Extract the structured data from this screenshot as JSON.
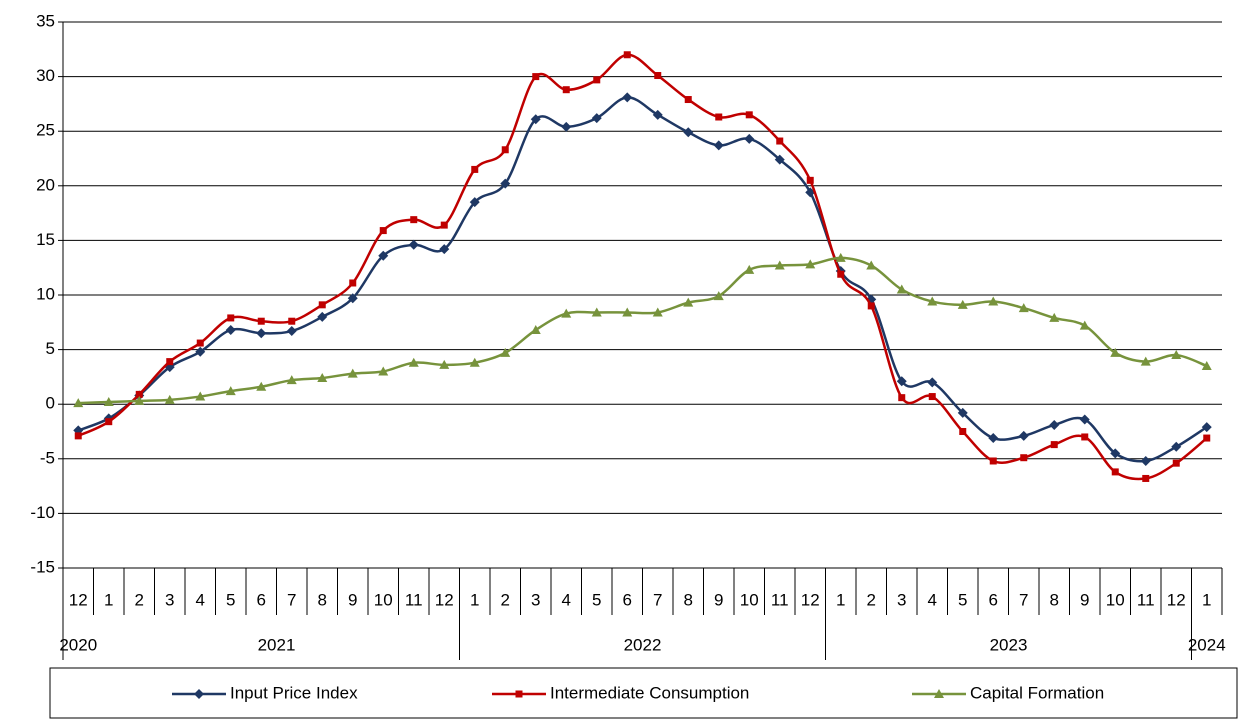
{
  "chart_data": {
    "type": "line",
    "categories": [
      "12",
      "1",
      "2",
      "3",
      "4",
      "5",
      "6",
      "7",
      "8",
      "9",
      "10",
      "11",
      "12",
      "1",
      "2",
      "3",
      "4",
      "5",
      "6",
      "7",
      "8",
      "9",
      "10",
      "11",
      "12",
      "1",
      "2",
      "3",
      "4",
      "5",
      "6",
      "7",
      "8",
      "9",
      "10",
      "11",
      "12",
      "1"
    ],
    "years": [
      "2020",
      "2021",
      "2022",
      "2023",
      "2024"
    ],
    "year_spans": [
      1,
      12,
      12,
      12,
      1
    ],
    "ylim": [
      -15,
      35
    ],
    "yticks": [
      -15,
      -10,
      -5,
      0,
      5,
      10,
      15,
      20,
      25,
      30,
      35
    ],
    "grid": true,
    "legend": "bottom",
    "series": [
      {
        "name": "Input Price Index",
        "color": "#1f3864",
        "marker": "diamond",
        "values": [
          -2.4,
          -1.3,
          0.8,
          3.4,
          4.8,
          6.8,
          6.5,
          6.7,
          8.0,
          9.7,
          13.6,
          14.6,
          14.2,
          18.5,
          20.2,
          26.1,
          25.4,
          26.2,
          28.1,
          26.5,
          24.9,
          23.7,
          24.3,
          22.4,
          19.4,
          12.2,
          9.6,
          2.1,
          2.0,
          -0.8,
          -3.1,
          -2.9,
          -1.9,
          -1.4,
          -4.5,
          -5.2,
          -3.9,
          -2.1
        ]
      },
      {
        "name": "Intermediate Consumption",
        "color": "#c00000",
        "marker": "square",
        "values": [
          -2.9,
          -1.6,
          0.9,
          3.9,
          5.6,
          7.9,
          7.6,
          7.6,
          9.1,
          11.1,
          15.9,
          16.9,
          16.4,
          21.5,
          23.3,
          30.0,
          28.8,
          29.7,
          32.0,
          30.1,
          27.9,
          26.3,
          26.5,
          24.1,
          20.5,
          11.9,
          9.0,
          0.6,
          0.7,
          -2.5,
          -5.2,
          -4.9,
          -3.7,
          -3.0,
          -6.2,
          -6.8,
          -5.4,
          -3.1
        ]
      },
      {
        "name": "Capital Formation",
        "color": "#77933c",
        "marker": "triangle",
        "values": [
          0.1,
          0.2,
          0.3,
          0.4,
          0.7,
          1.2,
          1.6,
          2.2,
          2.4,
          2.8,
          3.0,
          3.8,
          3.6,
          3.8,
          4.7,
          6.8,
          8.3,
          8.4,
          8.4,
          8.4,
          9.3,
          9.9,
          12.3,
          12.7,
          12.8,
          13.4,
          12.7,
          10.5,
          9.4,
          9.1,
          9.4,
          8.8,
          7.9,
          7.2,
          4.7,
          3.9,
          4.5,
          3.5
        ]
      }
    ]
  }
}
